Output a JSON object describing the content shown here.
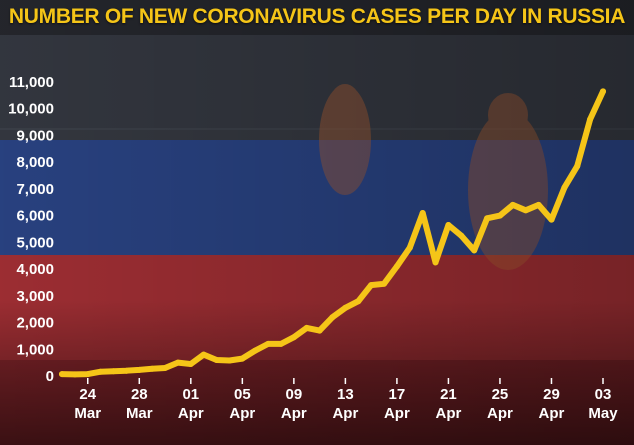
{
  "chart_data": {
    "type": "line",
    "title": "NUMBER OF NEW CORONAVIRUS CASES PER DAY IN RUSSIA",
    "xlabel": "",
    "ylabel": "",
    "ylim": [
      0,
      11000
    ],
    "yticks": [
      "0",
      "1,000",
      "2,000",
      "3,000",
      "4,000",
      "5,000",
      "6,000",
      "7,000",
      "8,000",
      "9,000",
      "10,000",
      "11,000"
    ],
    "x_tick_labels": [
      {
        "day": "24",
        "month": "Mar"
      },
      {
        "day": "28",
        "month": "Mar"
      },
      {
        "day": "01",
        "month": "Apr"
      },
      {
        "day": "05",
        "month": "Apr"
      },
      {
        "day": "09",
        "month": "Apr"
      },
      {
        "day": "13",
        "month": "Apr"
      },
      {
        "day": "17",
        "month": "Apr"
      },
      {
        "day": "21",
        "month": "Apr"
      },
      {
        "day": "25",
        "month": "Apr"
      },
      {
        "day": "29",
        "month": "Apr"
      },
      {
        "day": "03",
        "month": "May"
      }
    ],
    "series": [
      {
        "x": [
          "2020-03-22",
          "2020-03-23",
          "2020-03-24",
          "2020-03-25",
          "2020-03-26",
          "2020-03-27",
          "2020-03-28",
          "2020-03-29",
          "2020-03-30",
          "2020-03-31",
          "2020-04-01",
          "2020-04-02",
          "2020-04-03",
          "2020-04-04",
          "2020-04-05",
          "2020-04-06",
          "2020-04-07",
          "2020-04-08",
          "2020-04-09",
          "2020-04-10",
          "2020-04-11",
          "2020-04-12",
          "2020-04-13",
          "2020-04-14",
          "2020-04-15",
          "2020-04-16",
          "2020-04-17",
          "2020-04-18",
          "2020-04-19",
          "2020-04-20",
          "2020-04-21",
          "2020-04-22",
          "2020-04-23",
          "2020-04-24",
          "2020-04-25",
          "2020-04-26",
          "2020-04-27",
          "2020-04-28",
          "2020-04-29",
          "2020-04-30",
          "2020-05-01",
          "2020-05-02",
          "2020-05-03"
        ],
        "values": [
          70,
          60,
          70,
          160,
          180,
          200,
          230,
          270,
          300,
          500,
          450,
          800,
          600,
          580,
          650,
          950,
          1200,
          1200,
          1450,
          1800,
          1700,
          2200,
          2550,
          2800,
          3400,
          3450,
          4100,
          4800,
          6100,
          4250,
          5650,
          5250,
          4700,
          5900,
          6000,
          6400,
          6200,
          6400,
          5850,
          7050,
          7850,
          9600,
          10650
        ]
      }
    ],
    "colors": {
      "line": "#f5c518",
      "axis": "#ffffff",
      "title": "#f5c518"
    }
  }
}
